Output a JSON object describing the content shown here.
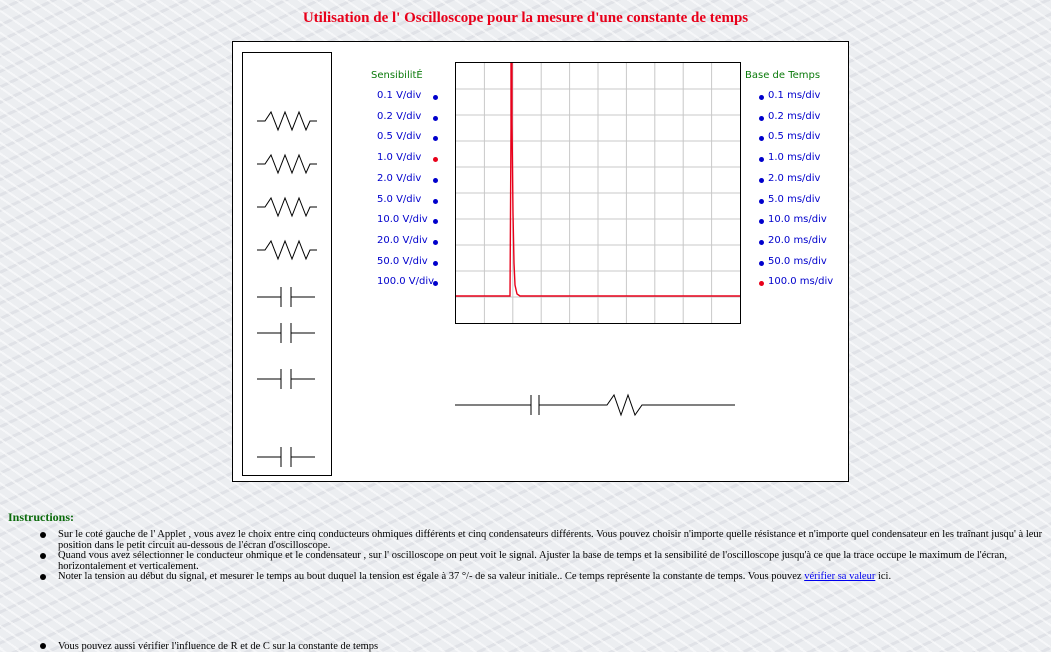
{
  "title": "Utilisation de l' Oscilloscope pour la mesure d'une constante de temps",
  "applet": {
    "sensibilite_label": "SensibilitÉ",
    "base_temps_label": "Base de Temps",
    "sensibilite_options": [
      "0.1 V/div",
      "0.2 V/div",
      "0.5 V/div",
      "1.0 V/div",
      "2.0 V/div",
      "5.0 V/div",
      "10.0 V/div",
      "20.0 V/div",
      "50.0 V/div",
      "100.0 V/div"
    ],
    "sensibilite_selected_index": 3,
    "base_options": [
      "0.1 ms/div",
      "0.2 ms/div",
      "0.5 ms/div",
      "1.0 ms/div",
      "2.0 ms/div",
      "5.0 ms/div",
      "10.0 ms/div",
      "20.0 ms/div",
      "50.0 ms/div",
      "100.0 ms/div"
    ],
    "base_selected_index": 9,
    "palette": [
      {
        "kind": "resistor-icon"
      },
      {
        "kind": "resistor-icon"
      },
      {
        "kind": "resistor-icon"
      },
      {
        "kind": "resistor-icon"
      },
      {
        "kind": "capacitor-icon"
      },
      {
        "kind": "capacitor-icon"
      },
      {
        "kind": "capacitor-icon"
      },
      {
        "kind": "capacitor-icon"
      }
    ],
    "colors": {
      "trace": "#e8001a",
      "option": "#0000cc",
      "header": "#0a7a0a",
      "selected_dot": "#e8001a"
    }
  },
  "instructions": {
    "heading": "Instructions:",
    "items": [
      "Sur le coté gauche de l' Applet , vous avez le choix entre cinq conducteurs ohmiques différents et cinq condensateurs différents. Vous pouvez choisir n'importe quelle résistance et n'importe quel condensateur en les traînant jusqu' à leur position dans le petit circuit au-dessous de l'écran d'oscilloscope.",
      "Quand vous avez sélectionner le conducteur ohmique et le condensateur , sur l' oscilloscope on peut voit le signal. Ajuster la base de temps et la sensibilité de l'oscilloscope jusqu'à ce que la trace occupe le maximum de l'écran, horizontalement et verticalement."
    ],
    "item3_before": "Noter la tension au début du signal, et mesurer le temps au bout duquel la tension est égale à 37 °/- de sa valeur initiale.. Ce temps représente la constante de temps. Vous pouvez",
    "item3_link": "vérifier sa valeur",
    "item3_after": "ici.",
    "extra": "Vous pouvez aussi vérifier l'influence de R et de C sur la constante de temps"
  }
}
